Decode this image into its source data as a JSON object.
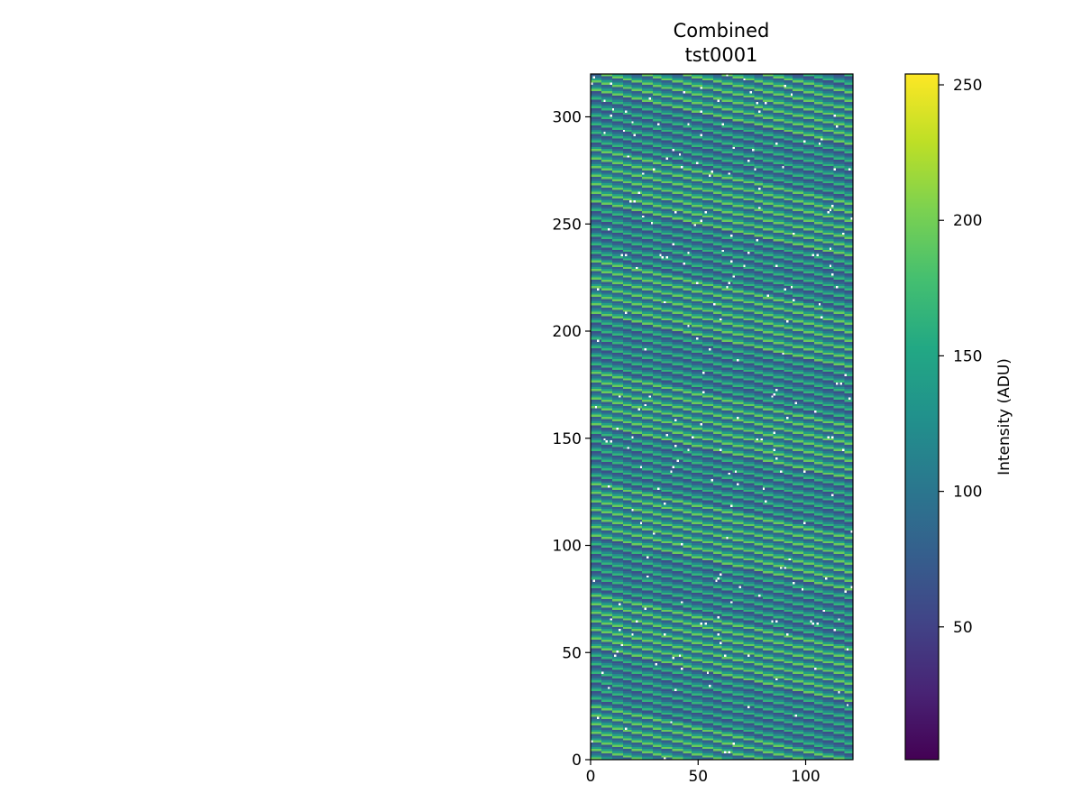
{
  "chart_data": {
    "type": "heatmap",
    "title_lines": [
      "Combined",
      "tst0001"
    ],
    "xlabel": "",
    "ylabel": "",
    "columns": 122,
    "rows": 320,
    "xlim": [
      0,
      122
    ],
    "ylim": [
      0,
      320
    ],
    "x_ticks": [
      0,
      50,
      100
    ],
    "y_ticks": [
      0,
      50,
      100,
      150,
      200,
      250,
      300
    ],
    "colormap": "viridis",
    "colorbar": {
      "label": "Intensity (ADU)",
      "range": [
        1,
        254
      ],
      "ticks": [
        50,
        100,
        150,
        200,
        250
      ]
    },
    "pattern": {
      "description_values": "horizontal fringes with period of 4 rows, intensity levels approx",
      "row_levels": [
        195,
        145,
        100,
        75
      ],
      "diagonal_period_rows": 26,
      "diagonal_span_columns": 122,
      "masked_pixel_color": "#ffffff",
      "masked_pixel_fraction": 0.006
    }
  }
}
